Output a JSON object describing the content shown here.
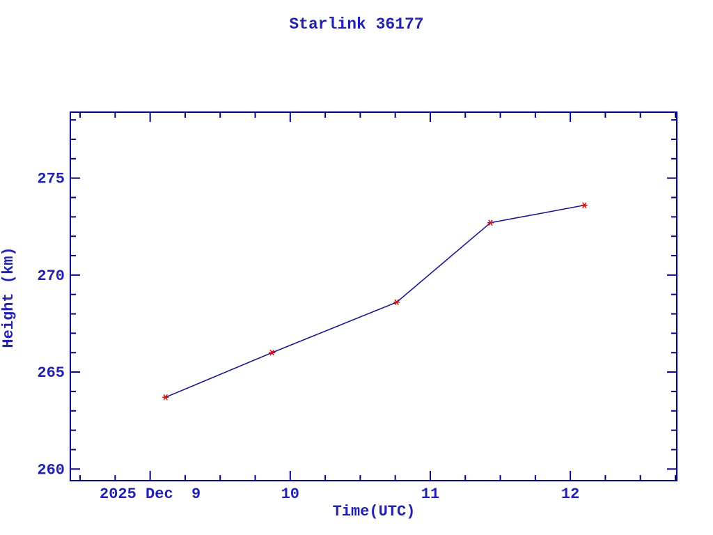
{
  "title": "Starlink 36177",
  "chart_data": {
    "type": "line",
    "title": "Starlink 36177",
    "xlabel": "Time(UTC)",
    "ylabel": "Height (km)",
    "xlim": [
      8.43,
      12.76
    ],
    "ylim": [
      259.4,
      278.4
    ],
    "x_tick_values": [
      9,
      10,
      11,
      12
    ],
    "x_tick_labels": [
      "2025 Dec  9",
      "10",
      "11",
      "12"
    ],
    "x_minor_step": 0.25,
    "y_tick_values": [
      260,
      265,
      270,
      275
    ],
    "y_tick_labels": [
      "260",
      "265",
      "270",
      "275"
    ],
    "y_minor_step": 1,
    "grid": "off",
    "legend": "none",
    "series": [
      {
        "name": "height-km",
        "marker": "asterisk",
        "x": [
          9.11,
          9.87,
          10.76,
          11.43,
          12.1
        ],
        "y": [
          263.7,
          266.0,
          268.6,
          272.7,
          273.6
        ]
      }
    ],
    "colors": {
      "frame": "#000080",
      "line": "#1a1a90",
      "marker": "#cc1111",
      "text": "#2222b2",
      "background": "#ffffff"
    }
  }
}
